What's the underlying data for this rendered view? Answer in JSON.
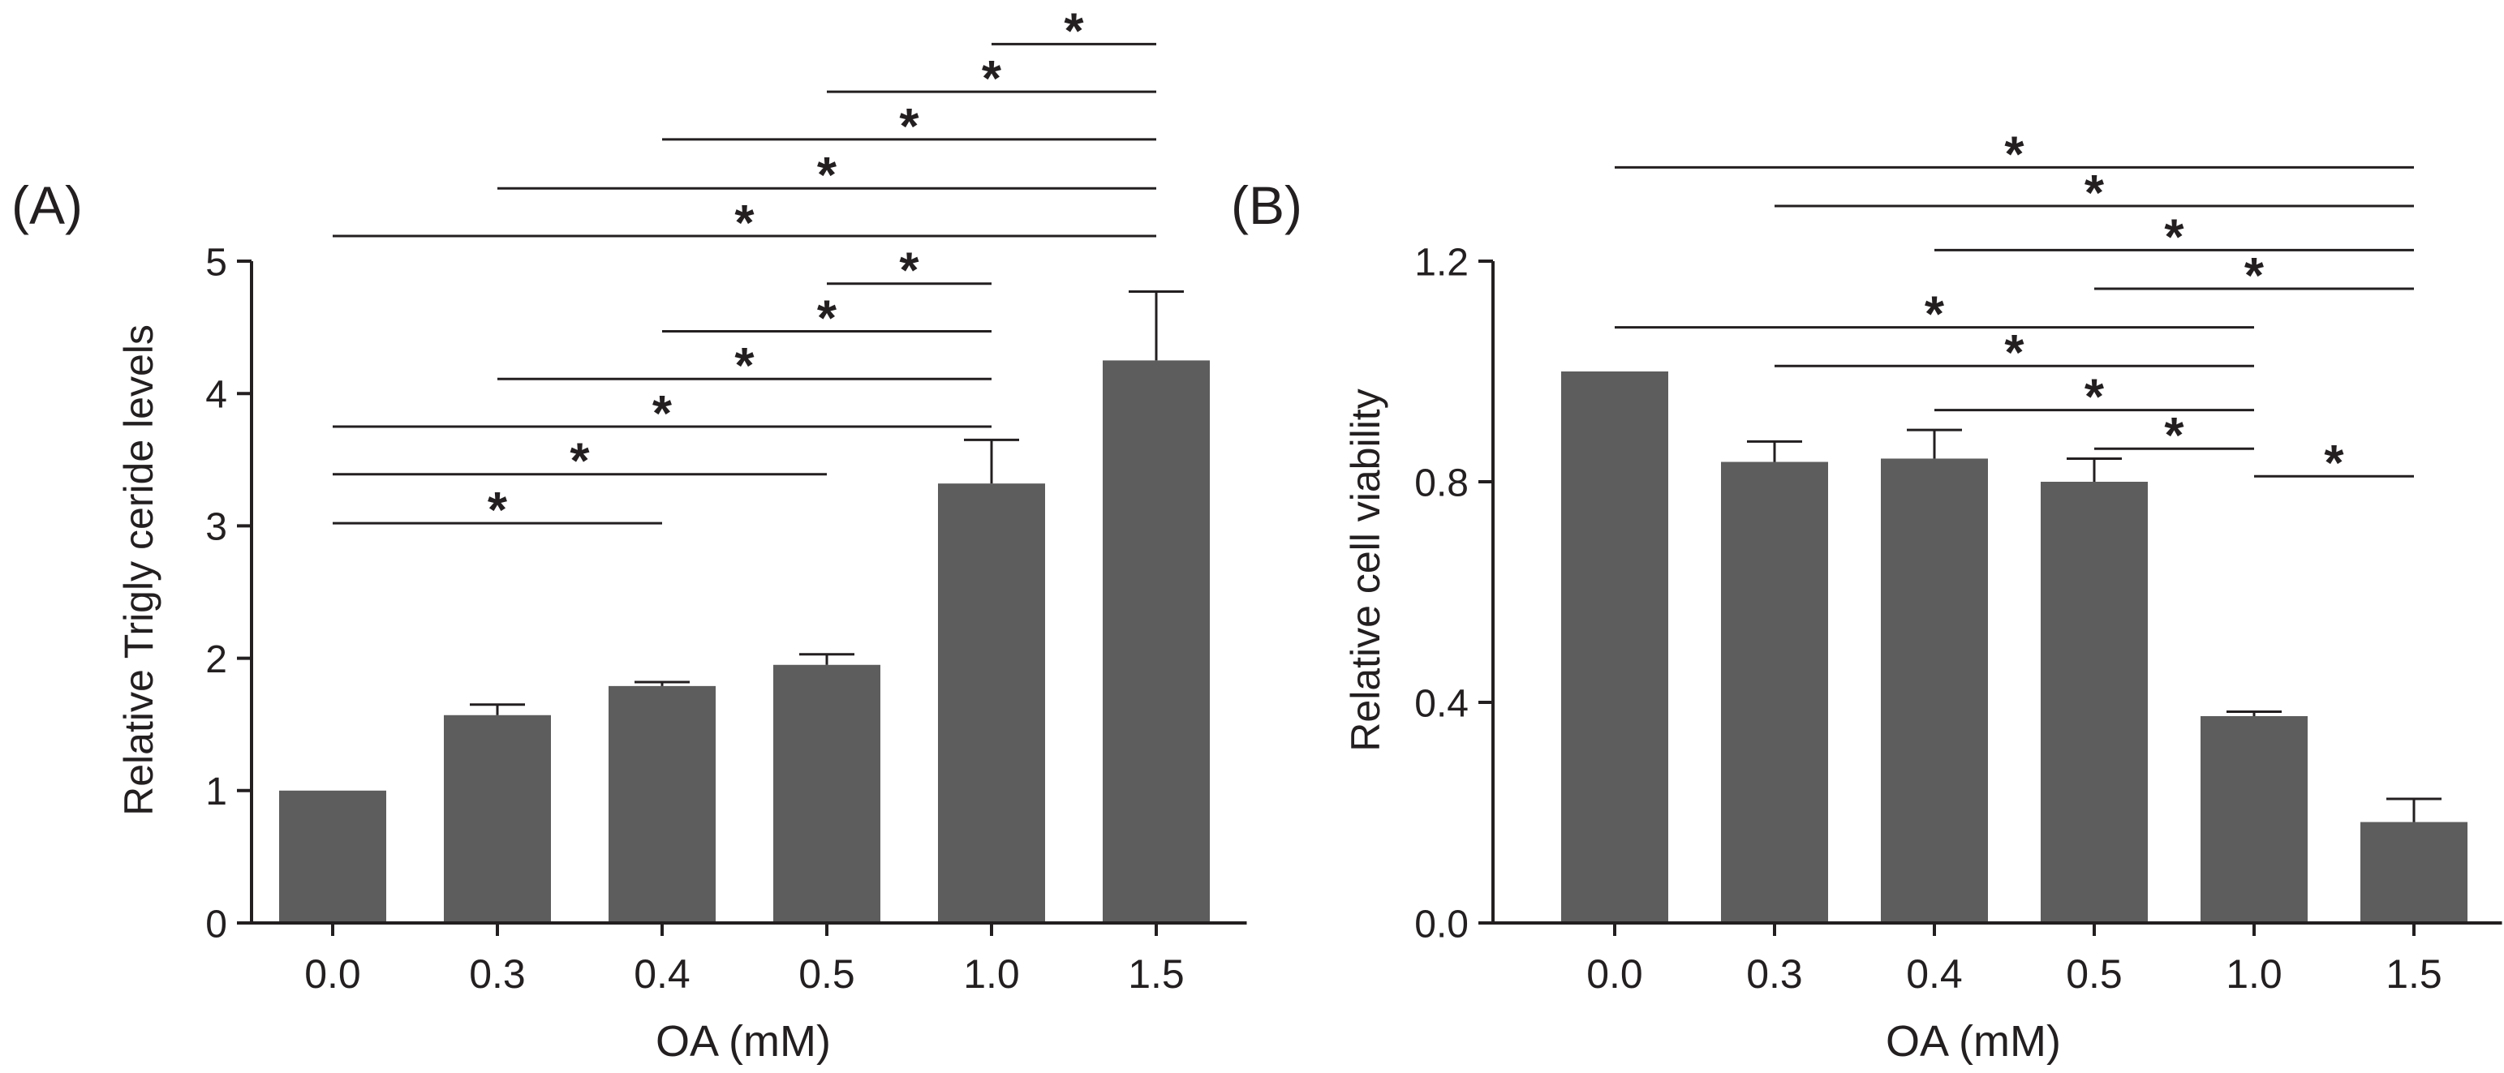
{
  "colors": {
    "bar": "#5d5d5d",
    "line": "#231f20",
    "background": "#ffffff"
  },
  "chart_data": [
    {
      "panel_label": "(A)",
      "type": "bar",
      "title": "",
      "xlabel": "OA (mM)",
      "ylabel": "Relative Trigly ceride levels",
      "categories": [
        "0.0",
        "0.3",
        "0.4",
        "0.5",
        "1.0",
        "1.5"
      ],
      "values": [
        1.0,
        1.57,
        1.79,
        1.95,
        3.32,
        4.25
      ],
      "errors": [
        0.0,
        0.08,
        0.03,
        0.08,
        0.33,
        0.52
      ],
      "ylim": [
        0,
        5
      ],
      "yticks": [
        0,
        1,
        2,
        3,
        4,
        5
      ],
      "ytick_labels": [
        "0",
        "1",
        "2",
        "3",
        "4",
        "5"
      ],
      "grid": false,
      "significance": [
        {
          "from": 0,
          "to": 2,
          "y": 3.02,
          "label": "*"
        },
        {
          "from": 0,
          "to": 3,
          "y": 3.39,
          "label": "*"
        },
        {
          "from": 0,
          "to": 4,
          "y": 3.75,
          "label": "*"
        },
        {
          "from": 1,
          "to": 4,
          "y": 4.11,
          "label": "*"
        },
        {
          "from": 2,
          "to": 4,
          "y": 4.47,
          "label": "*"
        },
        {
          "from": 3,
          "to": 4,
          "y": 4.83,
          "label": "*"
        },
        {
          "from": 0,
          "to": 5,
          "y": 5.19,
          "label": "*"
        },
        {
          "from": 1,
          "to": 5,
          "y": 5.55,
          "label": "*"
        },
        {
          "from": 2,
          "to": 5,
          "y": 5.92,
          "label": "*"
        },
        {
          "from": 3,
          "to": 5,
          "y": 6.28,
          "label": "*"
        },
        {
          "from": 4,
          "to": 5,
          "y": 6.64,
          "label": "*"
        }
      ]
    },
    {
      "panel_label": "(B)",
      "type": "bar",
      "title": "",
      "xlabel": "OA (mM)",
      "ylabel": "Relative cell viability",
      "categories": [
        "0.0",
        "0.3",
        "0.4",
        "0.5",
        "1.0",
        "1.5"
      ],
      "values": [
        1.0,
        0.836,
        0.842,
        0.8,
        0.375,
        0.183
      ],
      "errors": [
        0.0,
        0.037,
        0.052,
        0.042,
        0.008,
        0.042
      ],
      "ylim": [
        0,
        1.2
      ],
      "yticks": [
        0,
        0.4,
        0.8,
        1.2
      ],
      "ytick_labels": [
        "0.0",
        "0.4",
        "0.8",
        "1.2"
      ],
      "grid": false,
      "significance": [
        {
          "from": 4,
          "to": 5,
          "y": 0.81,
          "label": "*"
        },
        {
          "from": 3,
          "to": 4,
          "y": 0.86,
          "label": "*"
        },
        {
          "from": 2,
          "to": 4,
          "y": 0.93,
          "label": "*"
        },
        {
          "from": 1,
          "to": 4,
          "y": 1.01,
          "label": "*"
        },
        {
          "from": 0,
          "to": 4,
          "y": 1.08,
          "label": "*"
        },
        {
          "from": 3,
          "to": 5,
          "y": 1.15,
          "label": "*"
        },
        {
          "from": 2,
          "to": 5,
          "y": 1.22,
          "label": "*"
        },
        {
          "from": 1,
          "to": 5,
          "y": 1.3,
          "label": "*"
        },
        {
          "from": 0,
          "to": 5,
          "y": 1.37,
          "label": "*"
        }
      ]
    }
  ]
}
